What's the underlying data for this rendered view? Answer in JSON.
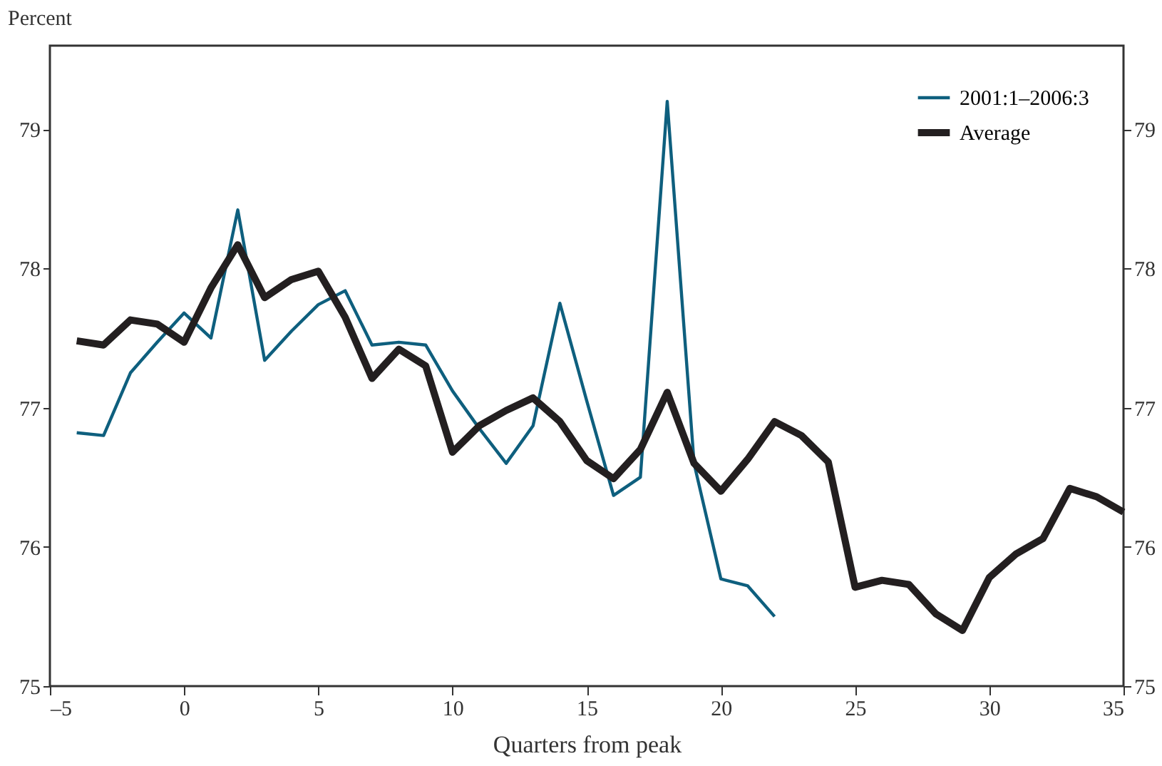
{
  "chart_data": {
    "type": "line",
    "ylabel": "Percent",
    "xlabel": "Quarters from peak",
    "xlim": [
      -5,
      35
    ],
    "xticks": [
      {
        "value": -5,
        "label": "–5"
      },
      0,
      5,
      10,
      15,
      20,
      25,
      30,
      35
    ],
    "ylim": [
      75,
      79.6
    ],
    "yticks": [
      75,
      76,
      77,
      78,
      79
    ],
    "y2lim": [
      75,
      79.6
    ],
    "y2ticks": [
      75,
      76,
      77,
      78,
      79
    ],
    "legend": "top right",
    "grid": false,
    "line_style": "solid",
    "marker": "none",
    "series": [
      {
        "name": "2001:1–2006:3",
        "color": "#0e5f7e",
        "x": [
          -4,
          -3,
          -2,
          -1,
          0,
          1,
          2,
          3,
          4,
          5,
          6,
          7,
          8,
          9,
          10,
          11,
          12,
          13,
          14,
          15,
          16,
          17,
          18,
          19,
          20,
          21,
          22
        ],
        "values": [
          76.82,
          76.8,
          77.25,
          77.47,
          77.68,
          77.5,
          78.42,
          77.34,
          77.55,
          77.74,
          77.84,
          77.45,
          77.47,
          77.45,
          77.12,
          76.85,
          76.6,
          76.87,
          77.75,
          77.05,
          76.37,
          76.5,
          79.2,
          76.6,
          75.77,
          75.72,
          75.5
        ]
      },
      {
        "name": "Average",
        "color": "#231f20",
        "x": [
          -4,
          -3,
          -2,
          -1,
          0,
          1,
          2,
          3,
          4,
          5,
          6,
          7,
          8,
          9,
          10,
          11,
          12,
          13,
          14,
          15,
          16,
          17,
          18,
          19,
          20,
          21,
          22,
          23,
          24,
          25,
          26,
          27,
          28,
          29,
          30,
          31,
          32,
          33,
          34,
          35
        ],
        "values": [
          77.48,
          77.45,
          77.63,
          77.6,
          77.47,
          77.86,
          78.17,
          77.79,
          77.92,
          77.98,
          77.65,
          77.21,
          77.42,
          77.3,
          76.68,
          76.87,
          76.98,
          77.07,
          76.9,
          76.62,
          76.49,
          76.7,
          77.11,
          76.6,
          76.4,
          76.63,
          76.9,
          76.8,
          76.61,
          75.71,
          75.76,
          75.73,
          75.52,
          75.4,
          75.78,
          75.95,
          76.06,
          76.42,
          76.36,
          76.25
        ]
      }
    ]
  }
}
